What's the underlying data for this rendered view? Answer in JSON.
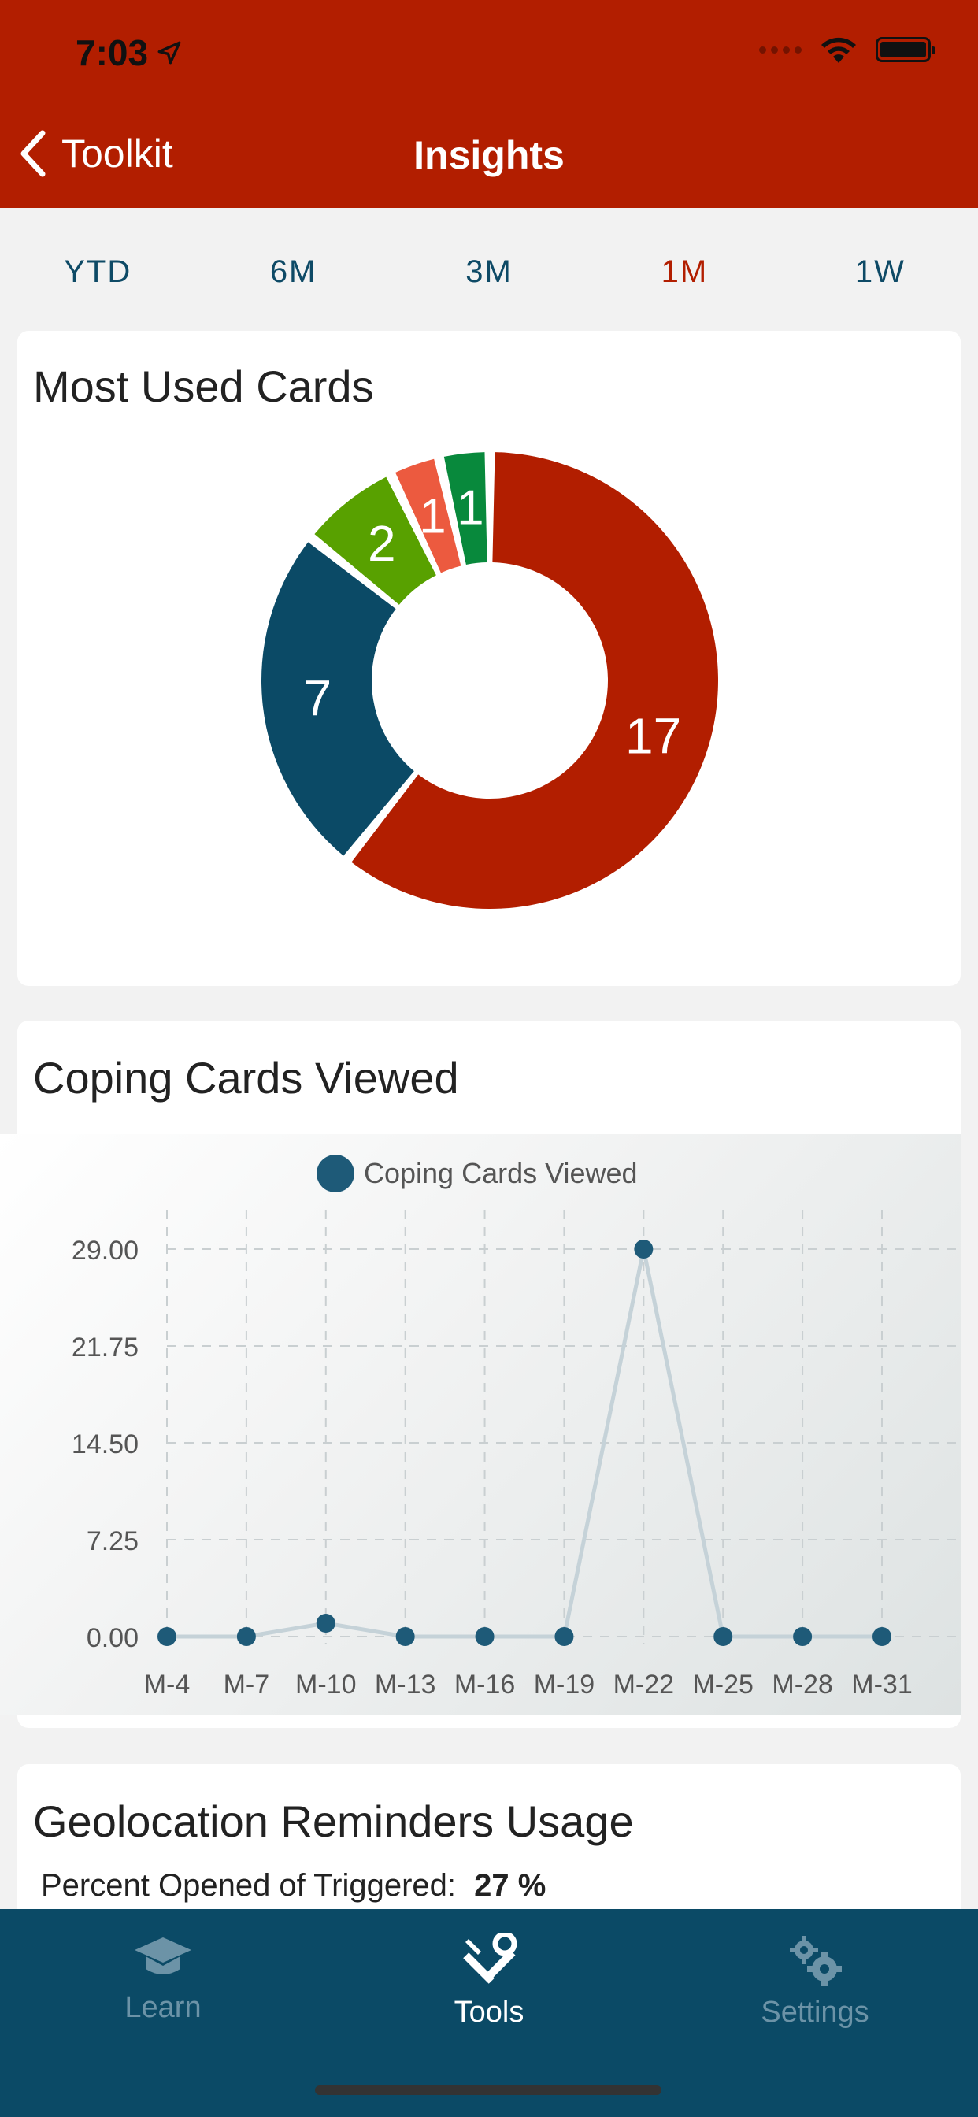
{
  "status": {
    "time": "7:03"
  },
  "nav": {
    "back_label": "Toolkit",
    "title": "Insights"
  },
  "range_tabs": [
    {
      "label": "YTD",
      "active": false
    },
    {
      "label": "6M",
      "active": false
    },
    {
      "label": "3M",
      "active": false
    },
    {
      "label": "1M",
      "active": true
    },
    {
      "label": "1W",
      "active": false
    }
  ],
  "most_used": {
    "title": "Most Used Cards",
    "chart_data": {
      "type": "pie",
      "values": [
        17,
        7,
        2,
        1,
        1
      ],
      "labels": [
        "17",
        "7",
        "2",
        "1",
        "1"
      ],
      "colors": [
        "#b21e00",
        "#0b4a66",
        "#58a100",
        "#ec5a3f",
        "#08893c"
      ]
    }
  },
  "coping": {
    "title": "Coping Cards Viewed",
    "chart_data": {
      "type": "line",
      "legend": "Coping Cards Viewed",
      "legend_placement": "top-center",
      "categories": [
        "M-4",
        "M-7",
        "M-10",
        "M-13",
        "M-16",
        "M-19",
        "M-22",
        "M-25",
        "M-28",
        "M-31"
      ],
      "values": [
        0,
        0,
        1,
        0,
        0,
        0,
        29,
        0,
        0,
        0
      ],
      "y_ticks": [
        "0.00",
        "7.25",
        "14.50",
        "21.75",
        "29.00"
      ],
      "ylim": [
        0,
        29
      ],
      "grid": true,
      "line_color": "#c5d2d8",
      "point_color": "#1e5a78"
    }
  },
  "geo": {
    "title": "Geolocation Reminders Usage",
    "percent_label": "Percent Opened of Triggered:",
    "percent_value": "27 %"
  },
  "tabbar": {
    "items": [
      {
        "label": "Learn",
        "icon": "graduation-cap-icon",
        "active": false
      },
      {
        "label": "Tools",
        "icon": "tools-icon",
        "active": true
      },
      {
        "label": "Settings",
        "icon": "gears-icon",
        "active": false
      }
    ]
  }
}
